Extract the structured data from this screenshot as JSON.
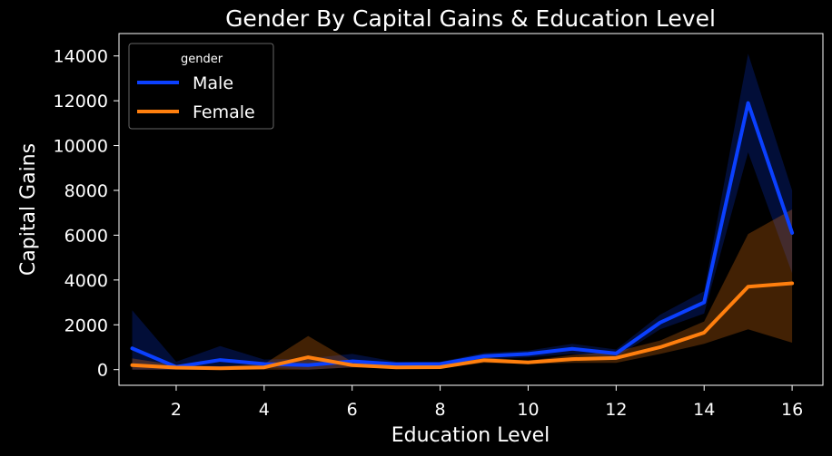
{
  "chart_data": {
    "type": "line",
    "title": "Gender By Capital Gains & Education Level",
    "xlabel": "Education Level",
    "ylabel": "Capital Gains",
    "xlim": [
      0.7,
      16.7
    ],
    "ylim": [
      -700,
      15000
    ],
    "x_ticks": [
      2,
      4,
      6,
      8,
      10,
      12,
      14,
      16
    ],
    "y_ticks": [
      0,
      2000,
      4000,
      6000,
      8000,
      10000,
      12000,
      14000
    ],
    "grid": false,
    "legend": {
      "title": "gender",
      "position": "top-left"
    },
    "x": [
      1,
      2,
      3,
      4,
      5,
      6,
      7,
      8,
      9,
      10,
      11,
      12,
      13,
      14,
      15,
      16
    ],
    "series": [
      {
        "name": "Male",
        "color": "#0b40ff",
        "values": [
          950,
          120,
          430,
          250,
          200,
          370,
          240,
          250,
          600,
          700,
          930,
          720,
          2100,
          3000,
          11900,
          6100
        ],
        "ci_low": [
          0,
          0,
          0,
          100,
          0,
          100,
          150,
          150,
          450,
          550,
          700,
          550,
          1800,
          2500,
          9700,
          4300
        ],
        "ci_high": [
          2650,
          350,
          1050,
          450,
          500,
          700,
          350,
          350,
          750,
          850,
          1150,
          900,
          2450,
          3500,
          14100,
          8000
        ]
      },
      {
        "name": "Female",
        "color": "#ff7f0e",
        "values": [
          200,
          90,
          60,
          100,
          550,
          200,
          100,
          110,
          420,
          320,
          470,
          520,
          1000,
          1650,
          3700,
          3850
        ],
        "ci_low": [
          0,
          0,
          0,
          0,
          0,
          100,
          50,
          50,
          300,
          250,
          300,
          300,
          700,
          1150,
          1800,
          1200
        ],
        "ci_high": [
          500,
          200,
          150,
          250,
          1500,
          350,
          150,
          200,
          550,
          400,
          650,
          800,
          1300,
          2150,
          6050,
          7150
        ]
      }
    ]
  }
}
